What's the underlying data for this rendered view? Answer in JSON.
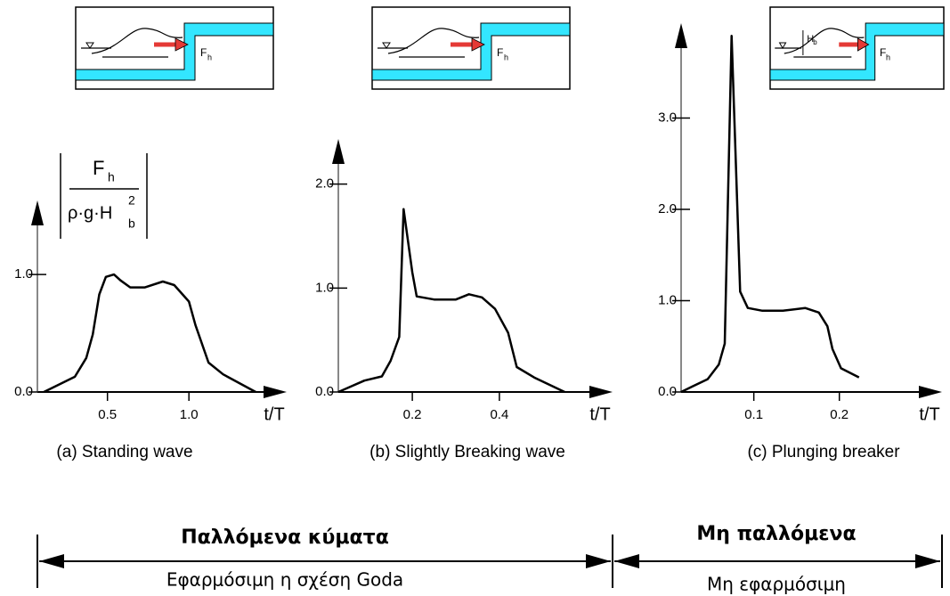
{
  "chart_data": [
    {
      "type": "line",
      "caption": "(a) Standing wave",
      "x_label": "t/T",
      "y_label": {
        "numerator": "F",
        "numerator_sub": "h",
        "denominator": "ρ·g·H",
        "denominator_sup": "2",
        "denominator_sub": "b"
      },
      "inset_labels": {
        "force": "F",
        "force_sub": "h"
      },
      "color": "#000000",
      "x": [
        0.11,
        0.3,
        0.37,
        0.41,
        0.45,
        0.49,
        0.54,
        0.58,
        0.64,
        0.73,
        0.84,
        0.91,
        1.0,
        1.04,
        1.12,
        1.21,
        1.41
      ],
      "values": [
        0,
        0.13,
        0.29,
        0.49,
        0.83,
        0.98,
        1.0,
        0.95,
        0.89,
        0.89,
        0.94,
        0.91,
        0.77,
        0.57,
        0.25,
        0.15,
        0
      ],
      "xlim": [
        0.07,
        1.6
      ],
      "ylim": [
        0,
        1.6
      ],
      "xticks": [
        0.5,
        {
          "value": 1,
          "label": "1.0"
        }
      ],
      "yticks": [
        {
          "value": 0,
          "label": "0.0"
        },
        {
          "value": 1,
          "label": "1.0"
        }
      ]
    },
    {
      "type": "line",
      "caption": "(b) Slightly Breaking wave",
      "x_label": "t/T",
      "inset_labels": {
        "force": "F",
        "force_sub": "h"
      },
      "color": "#000000",
      "x": [
        0.03,
        0.09,
        0.13,
        0.15,
        0.17,
        0.18,
        0.2,
        0.21,
        0.25,
        0.3,
        0.33,
        0.36,
        0.39,
        0.42,
        0.44,
        0.48,
        0.55
      ],
      "values": [
        0,
        0.11,
        0.15,
        0.3,
        0.53,
        1.76,
        1.15,
        0.92,
        0.89,
        0.89,
        0.94,
        0.91,
        0.8,
        0.57,
        0.24,
        0.14,
        0
      ],
      "xlim": [
        0.03,
        0.66
      ],
      "ylim": [
        0,
        2.4
      ],
      "xticks": [
        0.2,
        0.4
      ],
      "yticks": [
        {
          "value": 0,
          "label": "0.0"
        },
        {
          "value": 1,
          "label": "1.0"
        },
        {
          "value": 2,
          "label": "2.0"
        }
      ]
    },
    {
      "type": "line",
      "caption": "(c) Plunging breaker",
      "x_label": "t/T",
      "inset_labels": {
        "force": "F",
        "force_sub": "h",
        "height": "H",
        "height_sub": "b"
      },
      "color": "#000000",
      "x": [
        0.015,
        0.028,
        0.046,
        0.059,
        0.066,
        0.074,
        0.084,
        0.093,
        0.11,
        0.134,
        0.16,
        0.176,
        0.186,
        0.192,
        0.202,
        0.223
      ],
      "values": [
        0,
        0.06,
        0.14,
        0.3,
        0.53,
        3.9,
        1.1,
        0.92,
        0.89,
        0.89,
        0.92,
        0.87,
        0.72,
        0.47,
        0.26,
        0.16
      ],
      "xlim": [
        0.015,
        0.32
      ],
      "ylim": [
        0,
        4.0
      ],
      "xticks": [
        0.1,
        0.2
      ],
      "yticks": [
        {
          "value": 0,
          "label": "0.0"
        },
        {
          "value": 1,
          "label": "1.0"
        },
        {
          "value": 2,
          "label": "2.0"
        },
        {
          "value": 3,
          "label": "3.0"
        }
      ]
    }
  ],
  "regions": [
    {
      "title": "Παλλόμενα κύματα",
      "note": "Εφαρμόσιμη η σχέση Goda"
    },
    {
      "title": "Μη παλλόμενα",
      "note": "Μη εφαρμόσιμη"
    }
  ]
}
